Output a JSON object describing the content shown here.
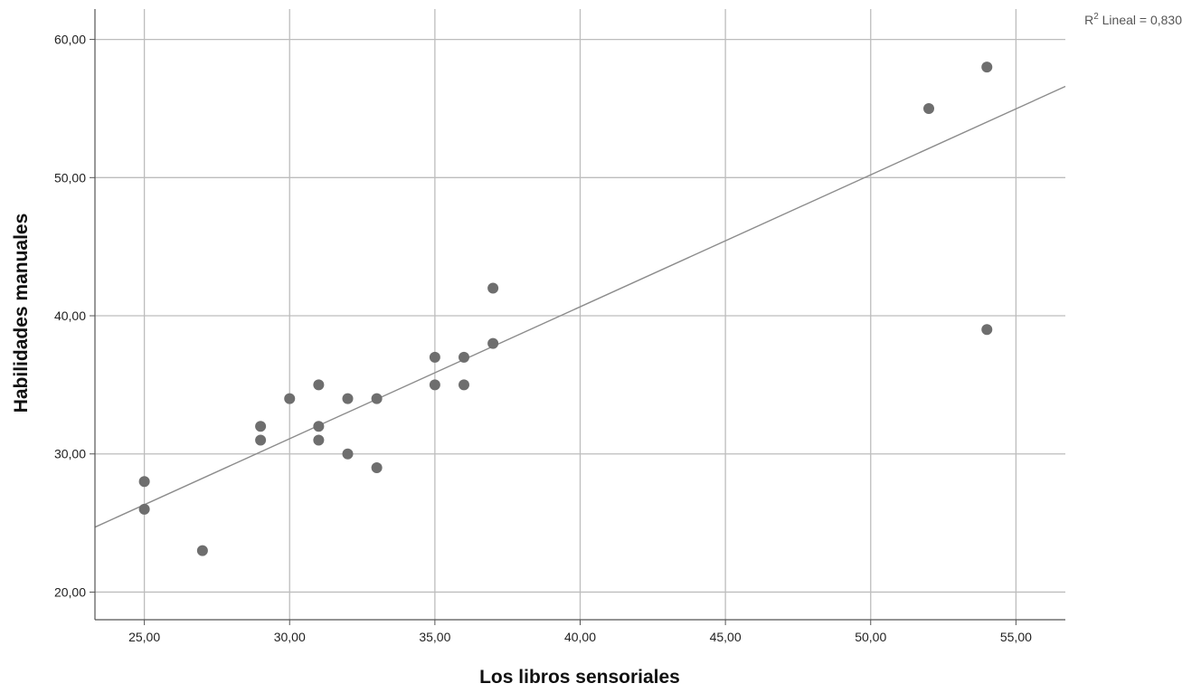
{
  "chart_data": {
    "type": "scatter",
    "xlabel": "Los libros sensoriales",
    "ylabel": "Habilidades manuales",
    "xlim": [
      23.3,
      56.7
    ],
    "ylim": [
      18.0,
      62.2
    ],
    "x_ticks": [
      "25,00",
      "30,00",
      "35,00",
      "40,00",
      "45,00",
      "50,00",
      "55,00"
    ],
    "x_tick_values": [
      25,
      30,
      35,
      40,
      45,
      50,
      55
    ],
    "y_ticks": [
      "20,00",
      "30,00",
      "40,00",
      "50,00",
      "60,00"
    ],
    "y_tick_values": [
      20,
      30,
      40,
      50,
      60
    ],
    "grid": true,
    "points": [
      {
        "x": 25,
        "y": 28
      },
      {
        "x": 25,
        "y": 26
      },
      {
        "x": 27,
        "y": 23
      },
      {
        "x": 29,
        "y": 32
      },
      {
        "x": 29,
        "y": 31
      },
      {
        "x": 30,
        "y": 34
      },
      {
        "x": 31,
        "y": 35
      },
      {
        "x": 31,
        "y": 32
      },
      {
        "x": 31,
        "y": 31
      },
      {
        "x": 32,
        "y": 34
      },
      {
        "x": 32,
        "y": 30
      },
      {
        "x": 33,
        "y": 34
      },
      {
        "x": 33,
        "y": 29
      },
      {
        "x": 35,
        "y": 37
      },
      {
        "x": 35,
        "y": 35
      },
      {
        "x": 36,
        "y": 37
      },
      {
        "x": 36,
        "y": 35
      },
      {
        "x": 37,
        "y": 42
      },
      {
        "x": 37,
        "y": 38
      },
      {
        "x": 52,
        "y": 55
      },
      {
        "x": 54,
        "y": 58
      },
      {
        "x": 54,
        "y": 39
      }
    ],
    "fit_line": {
      "x": [
        23.3,
        56.7
      ],
      "y": [
        24.7,
        56.6
      ]
    },
    "annotation": {
      "prefix": "R",
      "sup": "2",
      "text": " Lineal = 0,830"
    },
    "colors": {
      "points": "#6e6e6e",
      "fit_line": "#8c8c8c",
      "grid": "#bdbdbd",
      "axis": "#555555"
    }
  }
}
